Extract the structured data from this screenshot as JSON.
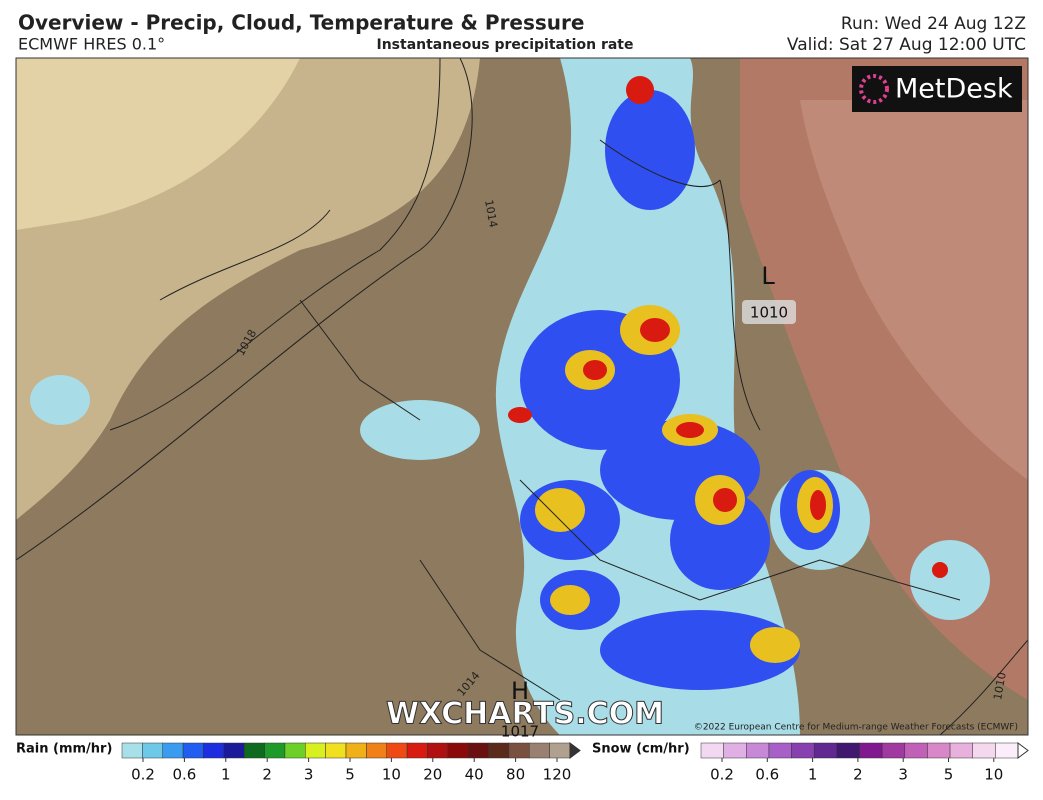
{
  "header": {
    "title": "Overview - Precip, Cloud, Temperature & Pressure",
    "model": "ECMWF HRES 0.1°",
    "field": "Instantaneous precipitation rate",
    "run": "Run: Wed 24 Aug 12Z",
    "valid": "Valid: Sat 27 Aug 12:00 UTC"
  },
  "map": {
    "brand": "MetDesk",
    "watermark": "WXCHARTS.COM",
    "copyright": "©2022 European Centre for Medium-range Weather Forecasts (ECMWF)",
    "low": {
      "symbol": "L",
      "pressure": "1010"
    },
    "high": {
      "symbol": "H",
      "pressure": "1017"
    },
    "isobars": [
      "1014",
      "1018",
      "1014",
      "1010"
    ]
  },
  "legend": {
    "rain": {
      "title": "Rain (mm/hr)",
      "labels": [
        "0.2",
        "0.6",
        "1",
        "2",
        "3",
        "5",
        "10",
        "20",
        "40",
        "80",
        "120"
      ],
      "colors": [
        "#a8e0ea",
        "#6ec8e8",
        "#3a9cf0",
        "#1f5ef0",
        "#1c2ee0",
        "#1a1a9a",
        "#0e6a1e",
        "#1e9a2a",
        "#6cd028",
        "#d8f020",
        "#f0e020",
        "#f0b018",
        "#f08018",
        "#f04a14",
        "#d81a10",
        "#b01010",
        "#8a0a0a",
        "#6a1010",
        "#5a2a1a",
        "#7a5040",
        "#9a8070",
        "#b0a090"
      ]
    },
    "snow": {
      "title": "Snow (cm/hr)",
      "labels": [
        "0.2",
        "0.6",
        "1",
        "2",
        "3",
        "5",
        "10"
      ],
      "colors": [
        "#f2d8f0",
        "#e0b0e4",
        "#c888d8",
        "#a860c8",
        "#8840b0",
        "#602890",
        "#401870",
        "#801890",
        "#a03aa0",
        "#c060b8",
        "#d888c8",
        "#e8b0dc",
        "#f4d8ee",
        "#fbeefa"
      ]
    }
  }
}
